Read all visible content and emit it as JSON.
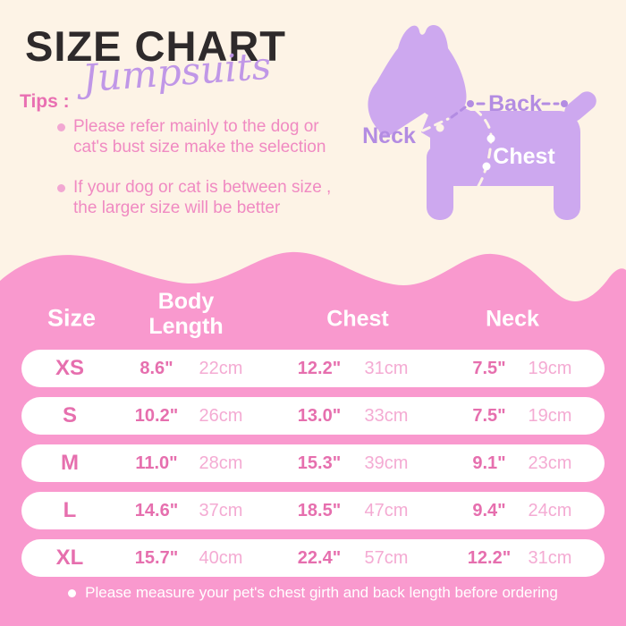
{
  "page": {
    "title": "SIZE CHART",
    "subtitle": "Jumpsuits",
    "tips_label": "Tips :",
    "tips": [
      {
        "line1": "Please refer mainly to the dog or",
        "line2": "cat's bust size make the selection"
      },
      {
        "line1": "If your dog or cat is between size ,",
        "line2": "the larger size will be better"
      }
    ]
  },
  "diagram": {
    "back_label": "Back",
    "neck_label": "Neck",
    "chest_label": "Chest"
  },
  "table": {
    "headers": {
      "size": "Size",
      "body_line1": "Body",
      "body_line2": "Length",
      "chest": "Chest",
      "neck": "Neck"
    },
    "rows": [
      {
        "size": "XS",
        "body_in": "8.6\"",
        "body_cm": "22cm",
        "chest_in": "12.2\"",
        "chest_cm": "31cm",
        "neck_in": "7.5\"",
        "neck_cm": "19cm"
      },
      {
        "size": "S",
        "body_in": "10.2\"",
        "body_cm": "26cm",
        "chest_in": "13.0\"",
        "chest_cm": "33cm",
        "neck_in": "7.5\"",
        "neck_cm": "19cm"
      },
      {
        "size": "M",
        "body_in": "11.0\"",
        "body_cm": "28cm",
        "chest_in": "15.3\"",
        "chest_cm": "39cm",
        "neck_in": "9.1\"",
        "neck_cm": "23cm"
      },
      {
        "size": "L",
        "body_in": "14.6\"",
        "body_cm": "37cm",
        "chest_in": "18.5\"",
        "chest_cm": "47cm",
        "neck_in": "9.4\"",
        "neck_cm": "24cm"
      },
      {
        "size": "XL",
        "body_in": "15.7\"",
        "body_cm": "40cm",
        "chest_in": "22.4\"",
        "chest_cm": "57cm",
        "neck_in": "12.2\"",
        "neck_cm": "31cm"
      }
    ],
    "footnote": "Please measure your pet's chest girth and back length before ordering"
  },
  "colors": {
    "cream_bg": "#fdf3e6",
    "pink_bg": "#f999ce",
    "accent_pink_dark": "#e66fae",
    "accent_pink_light": "#f4abd3",
    "tips_pink": "#f08ac2",
    "purple_dog": "#cda8ef",
    "purple_label": "#b38ce2",
    "title_dark": "#2e2a2b"
  }
}
